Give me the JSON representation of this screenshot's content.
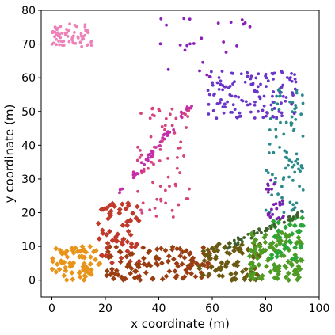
{
  "chart_data": {
    "type": "scatter",
    "title": "",
    "xlabel": "x coordinate (m)",
    "ylabel": "y coordinate (m)",
    "xlim": [
      -4,
      100
    ],
    "ylim": [
      -5,
      80
    ],
    "xticks": [
      0,
      20,
      40,
      60,
      80,
      100
    ],
    "yticks": [
      0,
      10,
      20,
      30,
      40,
      50,
      60,
      70,
      80
    ],
    "grid": false,
    "legend": "none",
    "clusters": [
      {
        "region": "bottom-left",
        "marker": "diamond",
        "color": "#e8941a",
        "x": [
          0,
          18
        ],
        "y": [
          0,
          10
        ],
        "n": 70
      },
      {
        "region": "left-ramp",
        "marker": "diamond",
        "color": "#c0392b",
        "x": [
          17,
          33
        ],
        "y": [
          5,
          23
        ],
        "n": 60
      },
      {
        "region": "bottom-center",
        "marker": "diamond",
        "color": "#9a3d12",
        "x": [
          20,
          60
        ],
        "y": [
          0,
          10
        ],
        "n": 110
      },
      {
        "region": "bottom-right-center",
        "marker": "diamond",
        "color": "#6b5a12",
        "x": [
          55,
          78
        ],
        "y": [
          0,
          11
        ],
        "n": 80
      },
      {
        "region": "bottom-right",
        "marker": "diamond",
        "color": "#4f9b24",
        "x": [
          74,
          94
        ],
        "y": [
          0,
          15
        ],
        "n": 100
      },
      {
        "region": "right-corner",
        "marker": "diamond",
        "color": "#2aa63a",
        "x": [
          82,
          94
        ],
        "y": [
          6,
          19
        ],
        "n": 35
      },
      {
        "region": "diagonal-pink-line",
        "marker": "circle",
        "color": "#c42ea8",
        "x": [
          25,
          53
        ],
        "y": [
          25,
          53
        ],
        "n": 55
      },
      {
        "region": "pink-column",
        "marker": "circle",
        "color": "#d6427e",
        "x": [
          32,
          52
        ],
        "y": [
          18,
          52
        ],
        "n": 70
      },
      {
        "region": "diagonal-green-line",
        "marker": "circle",
        "color": "#3e5f2a",
        "x": [
          65,
          94
        ],
        "y": [
          10,
          20
        ],
        "n": 45
      },
      {
        "region": "right-column",
        "marker": "circle",
        "color": "#2a8a8a",
        "x": [
          80,
          94
        ],
        "y": [
          20,
          60
        ],
        "n": 90
      },
      {
        "region": "purple-band",
        "marker": "circle",
        "color": "#7a1fb0",
        "x": [
          80,
          87
        ],
        "y": [
          18,
          30
        ],
        "n": 25
      },
      {
        "region": "top-band",
        "marker": "circle",
        "color": "#6a35c8",
        "x": [
          58,
          92
        ],
        "y": [
          48,
          62
        ],
        "n": 130
      },
      {
        "region": "scatter-top",
        "marker": "circle",
        "color": "#8a20b8",
        "x": [
          40,
          75
        ],
        "y": [
          60,
          80
        ],
        "n": 25
      },
      {
        "region": "top-left",
        "marker": "circle",
        "color": "#ee82b8",
        "x": [
          0,
          15
        ],
        "y": [
          69,
          76
        ],
        "n": 70
      }
    ]
  }
}
